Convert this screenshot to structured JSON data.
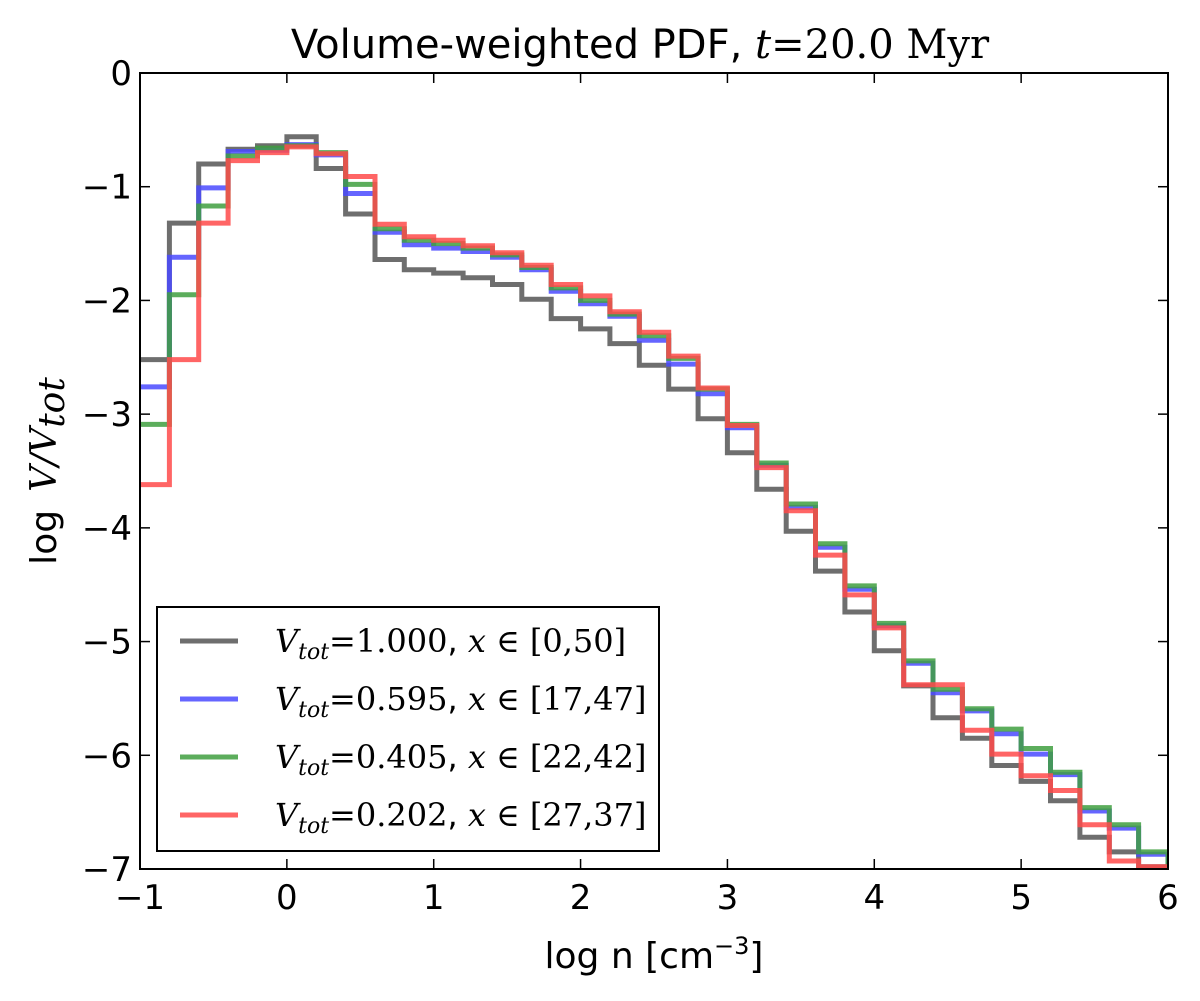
{
  "chart_data": {
    "type": "line",
    "step": "post",
    "title": {
      "prefix": "Volume-weighted PDF,",
      "t_symbol": "t",
      "equals": "=",
      "value": "20.0",
      "unit": "Myr"
    },
    "xlabel": {
      "text": "log n [cm",
      "superscript": "−3",
      "suffix": "]"
    },
    "ylabel": {
      "prefix": "log",
      "numerator": "V",
      "slash": "/",
      "denominator": "V",
      "subscript": "tot"
    },
    "xlim": [
      -1,
      6
    ],
    "ylim": [
      -7,
      0
    ],
    "xticks": [
      -1,
      0,
      1,
      2,
      3,
      4,
      5,
      6
    ],
    "xtick_labels": [
      "−1",
      "0",
      "1",
      "2",
      "3",
      "4",
      "5",
      "6"
    ],
    "yticks": [
      0,
      -1,
      -2,
      -3,
      -4,
      -5,
      -6,
      -7
    ],
    "ytick_labels": [
      "0",
      "−1",
      "−2",
      "−3",
      "−4",
      "−5",
      "−6",
      "−7"
    ],
    "grid": false,
    "legend_position": "lower-left",
    "x_edges": [
      -1.0,
      -0.8,
      -0.6,
      -0.4,
      -0.2,
      0.0,
      0.2,
      0.4,
      0.6,
      0.8,
      1.0,
      1.2,
      1.4,
      1.6,
      1.8,
      2.0,
      2.2,
      2.4,
      2.6,
      2.8,
      3.0,
      3.2,
      3.4,
      3.6,
      3.8,
      4.0,
      4.2,
      4.4,
      4.6,
      4.8,
      5.0,
      5.2,
      5.4,
      5.6,
      5.8,
      6.0
    ],
    "series": [
      {
        "name": "1.000",
        "range": "[0,50]",
        "color": "#555555",
        "values": [
          -2.52,
          -1.32,
          -0.8,
          -0.67,
          -0.64,
          -0.56,
          -0.84,
          -1.24,
          -1.64,
          -1.73,
          -1.76,
          -1.8,
          -1.86,
          -1.99,
          -2.16,
          -2.25,
          -2.38,
          -2.57,
          -2.78,
          -3.04,
          -3.34,
          -3.66,
          -4.03,
          -4.38,
          -4.74,
          -5.08,
          -5.39,
          -5.67,
          -5.85,
          -6.09,
          -6.23,
          -6.4,
          -6.72,
          -6.85,
          -6.98
        ]
      },
      {
        "name": "0.595",
        "range": "[17,47]",
        "color": "#4a4aff",
        "values": [
          -2.76,
          -1.62,
          -1.01,
          -0.69,
          -0.68,
          -0.63,
          -0.72,
          -1.06,
          -1.4,
          -1.51,
          -1.54,
          -1.57,
          -1.62,
          -1.73,
          -1.92,
          -2.03,
          -2.14,
          -2.35,
          -2.56,
          -2.82,
          -3.12,
          -3.45,
          -3.82,
          -4.17,
          -4.54,
          -4.86,
          -5.19,
          -5.45,
          -5.61,
          -5.81,
          -5.99,
          -6.17,
          -6.49,
          -6.64,
          -6.87
        ]
      },
      {
        "name": "0.405",
        "range": "[22,42]",
        "color": "#3f9f3f",
        "values": [
          -3.09,
          -1.95,
          -1.17,
          -0.73,
          -0.66,
          -0.64,
          -0.7,
          -0.98,
          -1.37,
          -1.47,
          -1.5,
          -1.54,
          -1.6,
          -1.71,
          -1.89,
          -2.0,
          -2.12,
          -2.31,
          -2.51,
          -2.78,
          -3.09,
          -3.43,
          -3.79,
          -4.14,
          -4.51,
          -4.84,
          -5.17,
          -5.42,
          -5.59,
          -5.77,
          -5.94,
          -6.15,
          -6.46,
          -6.61,
          -6.85
        ]
      },
      {
        "name": "0.202",
        "range": "[27,37]",
        "color": "#ff4a4a",
        "values": [
          -3.62,
          -2.52,
          -1.32,
          -0.77,
          -0.7,
          -0.65,
          -0.71,
          -0.91,
          -1.33,
          -1.44,
          -1.47,
          -1.52,
          -1.58,
          -1.69,
          -1.86,
          -1.96,
          -2.1,
          -2.28,
          -2.49,
          -2.77,
          -3.1,
          -3.47,
          -3.85,
          -4.24,
          -4.59,
          -4.88,
          -5.38,
          -5.38,
          -5.78,
          -5.99,
          -6.18,
          -6.31,
          -6.61,
          -6.93,
          -6.98
        ]
      }
    ]
  }
}
